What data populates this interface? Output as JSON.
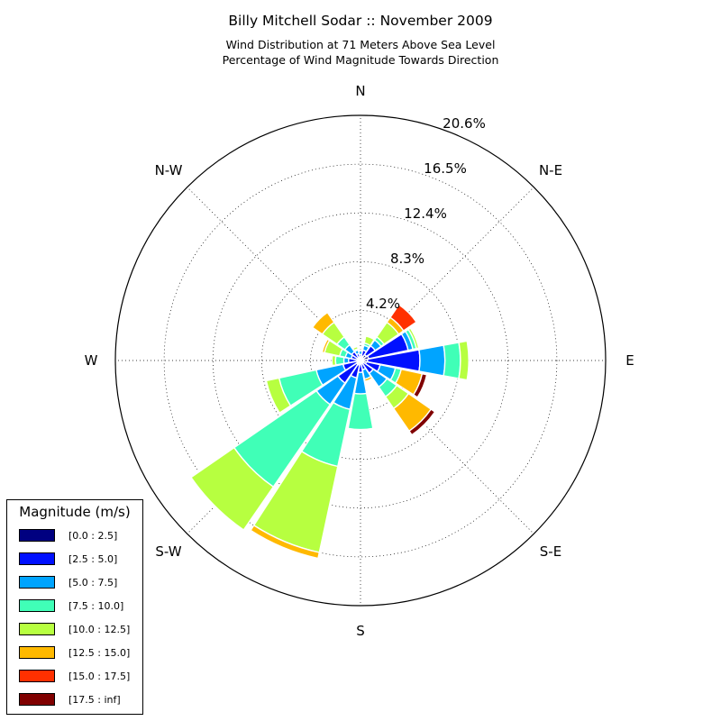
{
  "chart_data": {
    "type": "windrose",
    "title": "Billy Mitchell Sodar :: November 2009",
    "subtitle_lines": [
      "Wind Distribution at 71 Meters Above Sea Level",
      "Percentage of Wind Magnitude Towards Direction"
    ],
    "directions": [
      "N",
      "NNE",
      "NE",
      "ENE",
      "E",
      "ESE",
      "SE",
      "SSE",
      "S",
      "SSW",
      "SW",
      "WSW",
      "W",
      "WNW",
      "NW",
      "NNW"
    ],
    "direction_labels": [
      "N",
      "N-E",
      "E",
      "S-E",
      "S",
      "S-W",
      "W",
      "N-W"
    ],
    "radial_ticks": [
      "4.2%",
      "8.3%",
      "12.4%",
      "16.5%",
      "20.6%"
    ],
    "radial_tick_values": [
      4.2,
      8.3,
      12.4,
      16.5,
      20.6
    ],
    "rmax": 20.6,
    "grid": true,
    "legend": {
      "title": "Magnitude (m/s)",
      "placement": "lower-left",
      "bins": [
        "[0.0 : 2.5]",
        "[2.5 : 5.0]",
        "[5.0 : 7.5]",
        "[7.5 : 10.0]",
        "[10.0 : 12.5]",
        "[12.5 : 15.0]",
        "[15.0 : 17.5]",
        "[17.5 : inf]"
      ],
      "colors": [
        "#000080",
        "#0010ff",
        "#00a4ff",
        "#40ffb7",
        "#b7ff40",
        "#ffb900",
        "#ff3000",
        "#800000"
      ]
    },
    "series": [
      {
        "values": [
          0.2,
          0.4,
          0.6,
          0.7,
          0.6,
          0.5,
          0.3,
          0.2,
          0.3,
          0.4,
          0.4,
          0.3,
          0.3,
          0.2,
          0.3,
          0.3
        ]
      },
      {
        "values": [
          0.3,
          0.5,
          0.9,
          3.4,
          4.4,
          1.2,
          1.0,
          0.6,
          0.7,
          1.1,
          1.9,
          1.2,
          0.7,
          0.6,
          0.6,
          0.3
        ]
      },
      {
        "values": [
          0.3,
          0.4,
          0.6,
          0.4,
          2.1,
          1.3,
          1.4,
          0.8,
          1.8,
          2.7,
          2.2,
          2.3,
          0.4,
          0.5,
          0.7,
          0.3
        ]
      },
      {
        "values": [
          0.1,
          0.2,
          0.3,
          0.3,
          1.3,
          0.5,
          1.0,
          0.0,
          3.0,
          4.9,
          8.4,
          3.2,
          0.7,
          0.5,
          0.8,
          0.1
        ]
      },
      {
        "values": [
          0.0,
          0.6,
          1.5,
          0.2,
          0.7,
          0.0,
          1.2,
          0.0,
          0.0,
          7.4,
          4.4,
          1.1,
          0.3,
          1.3,
          1.5,
          0.2
        ]
      },
      {
        "values": [
          0.0,
          0.0,
          0.5,
          0.0,
          0.0,
          1.8,
          2.3,
          0.2,
          0.0,
          0.5,
          0.0,
          0.0,
          0.0,
          0.2,
          1.0,
          0.0
        ]
      },
      {
        "values": [
          0.0,
          0.0,
          1.3,
          0.0,
          0.0,
          0.0,
          0.0,
          0.0,
          0.0,
          0.0,
          0.0,
          0.0,
          0.0,
          0.0,
          0.0,
          0.0
        ]
      },
      {
        "values": [
          0.0,
          0.0,
          0.0,
          0.0,
          0.0,
          0.4,
          0.4,
          0.0,
          0.0,
          0.0,
          0.0,
          0.0,
          0.0,
          0.0,
          0.0,
          0.0
        ]
      }
    ]
  }
}
